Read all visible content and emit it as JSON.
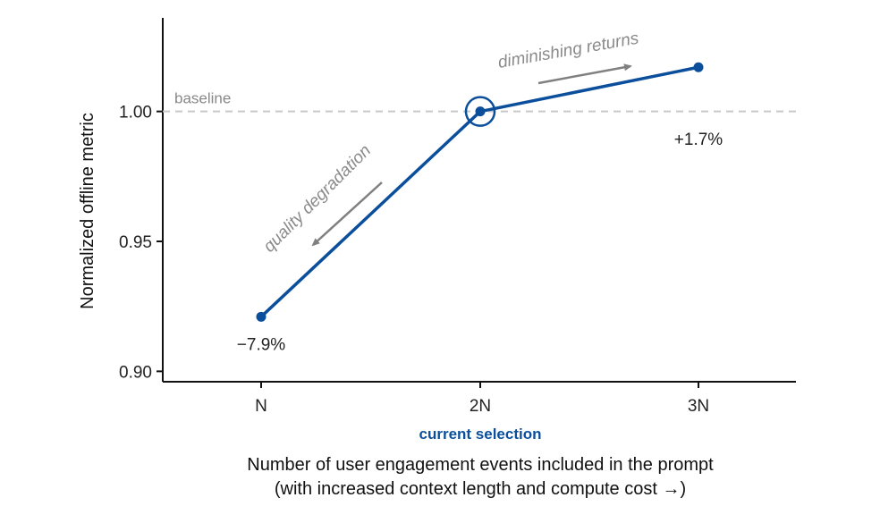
{
  "chart_data": {
    "type": "line",
    "categories": [
      "N",
      "2N",
      "3N"
    ],
    "values": [
      0.921,
      1.0,
      1.017
    ],
    "ylabel": "Normalized offline metric",
    "xlabel_line1": "Number of user engagement events included in the prompt",
    "xlabel_line2": "(with increased context length and compute cost →)",
    "ylim": [
      0.896,
      1.036
    ],
    "yticks": [
      0.9,
      0.95,
      1.0
    ],
    "ytick_labels": [
      "0.90",
      "0.95",
      "1.00"
    ],
    "baseline_value": 1.0,
    "baseline_label": "baseline",
    "point_labels": [
      "−7.9%",
      "",
      "+1.7%"
    ],
    "highlight_index": 1,
    "highlight_label": "current selection",
    "annotations": {
      "left": "quality degradation",
      "right": "diminishing returns"
    },
    "grid": false,
    "colors": {
      "line": "#0b4f9c",
      "baseline": "#c8c8c8",
      "annotation": "#8a8a8a",
      "axis": "#111111"
    }
  }
}
